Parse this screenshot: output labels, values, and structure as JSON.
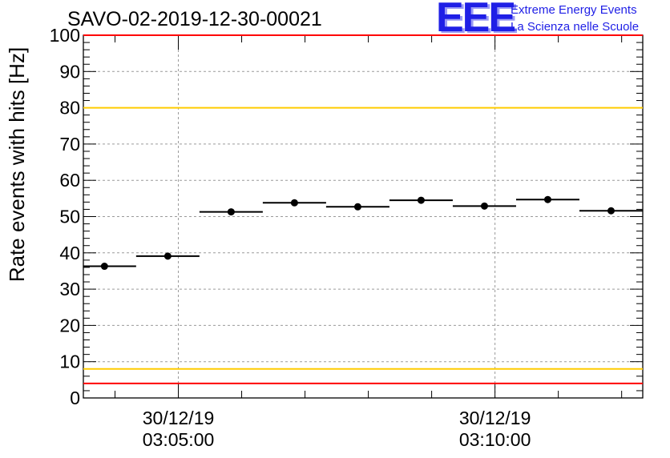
{
  "title": "SAVO-02-2019-12-30-00021",
  "logo": {
    "mark": "EEE",
    "line1": "Extreme Energy Events",
    "line2": "La Scienza nelle Scuole",
    "color": "#1f1fe6"
  },
  "chart_data": {
    "type": "scatter",
    "ylabel": "Rate events with hits [Hz]",
    "ylim": [
      0,
      100
    ],
    "yticks": [
      0,
      10,
      20,
      30,
      40,
      50,
      60,
      70,
      80,
      90,
      100
    ],
    "x_axis": {
      "kind": "time",
      "range": [
        "30/12/19 03:03:30",
        "30/12/19 03:12:20"
      ],
      "major_ticks": [
        {
          "date": "30/12/19",
          "time": "03:05:00"
        },
        {
          "date": "30/12/19",
          "time": "03:10:00"
        }
      ]
    },
    "grid": true,
    "series": [
      {
        "points": [
          {
            "x": "03:03:50",
            "x_from": "03:03:30",
            "x_to": "03:04:20",
            "y": 36.3
          },
          {
            "x": "03:04:50",
            "x_from": "03:04:20",
            "x_to": "03:05:20",
            "y": 39.1
          },
          {
            "x": "03:05:50",
            "x_from": "03:05:20",
            "x_to": "03:06:20",
            "y": 51.3
          },
          {
            "x": "03:06:50",
            "x_from": "03:06:20",
            "x_to": "03:07:20",
            "y": 53.8
          },
          {
            "x": "03:07:50",
            "x_from": "03:07:20",
            "x_to": "03:08:20",
            "y": 52.7
          },
          {
            "x": "03:08:50",
            "x_from": "03:08:20",
            "x_to": "03:09:20",
            "y": 54.5
          },
          {
            "x": "03:09:50",
            "x_from": "03:09:20",
            "x_to": "03:10:20",
            "y": 52.9
          },
          {
            "x": "03:10:50",
            "x_from": "03:10:20",
            "x_to": "03:11:20",
            "y": 54.7
          },
          {
            "x": "03:11:50",
            "x_from": "03:11:20",
            "x_to": "03:12:20",
            "y": 51.6
          }
        ],
        "color": "#000000"
      }
    ],
    "reference_lines": [
      {
        "y": 100,
        "color": "#ff0000"
      },
      {
        "y": 80,
        "color": "#ffcc00"
      },
      {
        "y": 8,
        "color": "#ffcc00"
      },
      {
        "y": 4,
        "color": "#ff0000"
      }
    ]
  }
}
